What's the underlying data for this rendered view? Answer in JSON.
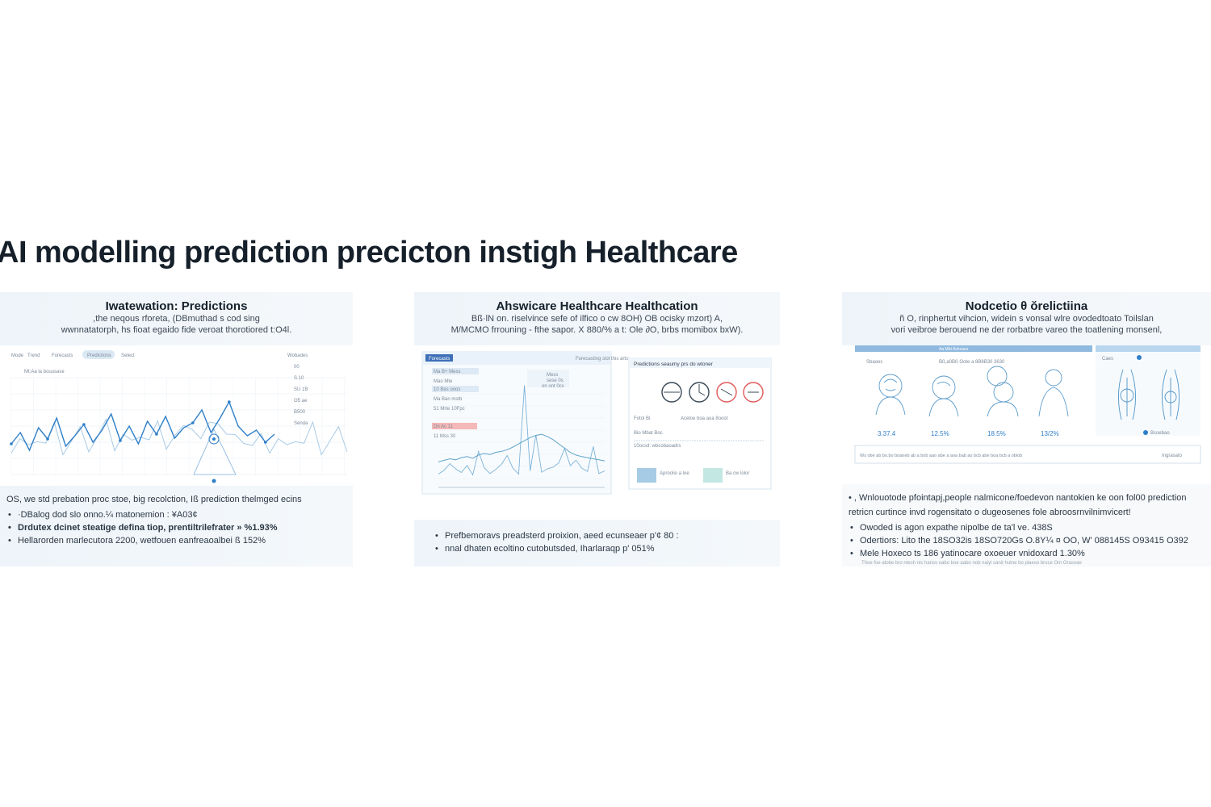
{
  "page": {
    "title": "AI modelling prediction precicton instigh Healthcare"
  },
  "colors": {
    "accent": "#2f7fc8",
    "line_blue": "#3d86c6",
    "light_blue": "#9fc6e4",
    "red": "#e05a5a",
    "header_bg": "#eef4f9"
  },
  "panels": [
    {
      "title": "Iwatewation: Predictions",
      "desc": [
        ",the neqous rforeta, (DBmuthad s cod sing",
        "wwnnatatorph, hs fioat egaido fide veroat thorotiored t:O4l."
      ],
      "chart": {
        "tabs": [
          "Mode",
          "Trend",
          "Forecasts",
          "Predictions",
          "Select"
        ],
        "legend_label": "Mt:Aa la bouusase",
        "side_labels": [
          "Wobades",
          "00",
          "S.10",
          "SU 1B",
          "O5 ae",
          "B500",
          "Senda"
        ]
      },
      "foot": {
        "intro": "OS, we std prebation proc stoe, big recolction, Iß prediction thelmged ecins",
        "bullets": [
          "·DBalog dod slo onno.¼ matonemion : ¥A03¢",
          "Drdutex dcinet steatige defina tiop, prentiltrilefrater » %1.93%",
          "Hellarorden marlecutora 2200, wetfouen eanfreaoalbei ß 152%"
        ]
      }
    },
    {
      "title": "Ahswicare Healthcare Healthcation",
      "desc": [
        "Bß·lN on. riselvince sefe of ilfico o cw 8OH) OB ocisky mzort) A,",
        "M/MCMO frrouning - fthe sapor. X 880/% a t: Ole ∂O, brbs momibox bxW)."
      ],
      "chart": {
        "header": "Forecasts",
        "top_label": "Forecasting slot this arts:",
        "menu": [
          "Ma B+ Mess",
          "Mao Mte",
          "10 Bes ooos",
          "Ma Ban mstb",
          "51 Mrte 10Fpc",
          "Dn Ac 11",
          "11 Mss 30"
        ],
        "mid_labels": [
          "Mess",
          "sese 0s",
          "on ont 0cs"
        ],
        "right_title": "Predictions seaumy prs do wtoner",
        "right_rows": [
          "Fotol Bi",
          "Aceloe boa aoa 8ooot",
          "Bio Mbat Boc",
          "10ocsd: wbcobaoadrs"
        ],
        "foot_labels": [
          "Aproolio a loe",
          "Ba cw lolor"
        ]
      },
      "foot": {
        "bullets": [
          "Prefbemoravs preadsterd proixion, aeed ecunseaer p'¢ 80 :",
          "nnal dhaten ecoltino cutobutsded, Iharlaraqp p' 051%"
        ]
      }
    },
    {
      "title": "Nodcetio θ ŏrelictiina",
      "desc": [
        "ñ O, rinphertut vihcion, widein s vonsal wlre ovodedtoato Toilslan",
        "vori veibroe berouend ne der rorbatbre vareo the toatlening monsenl,"
      ],
      "chart": {
        "bar_label": "Aa Mbt Ashnaes",
        "subtitle": "Sbaoes",
        "metrics_label": "Bß,a0Bß Oote a 8B8B30 3630",
        "values": [
          "3.37.4",
          "12.5%",
          "18.5%",
          "13/2%"
        ],
        "caption": "Caes",
        "legend": "Bcoebao",
        "footer": "Ws obe ab bo.bo boaneb ab a bob aao abe a aoa bab ao bcb abe boa bcb a oblob",
        "footer_right": "Ingrasato"
      },
      "foot": {
        "intro": [
          "• , Wnlouotode pfointapj,people nalmicone/foedevon nantokien ke oon fol00 prediction",
          "retricn curtince invd rogensitato o dugeosenes fole abroosrnvilnimvicert!"
        ],
        "bullets": [
          "Owoded is agon expathe nipolbe de ta'l ve. 438S",
          "Odertiors: Lito the 18SO32is 18SO720Gs O.8Y¼ ¤ OO, W' 088145S O93415 O392",
          "Mele Hoxeco ts 186 yatinocare oxoeuer vnidoxard 1.30%"
        ],
        "fine": "Thoe foe atobe bro ntesh nic hanss oabo boe aabo nob naiyi sanit hutne bo plaeso bruce Om Orasnae"
      }
    }
  ],
  "chart_data": {
    "type": "line",
    "series": [
      {
        "values": [
          38,
          52,
          30,
          58,
          44,
          70,
          35,
          48,
          62,
          40,
          55,
          75,
          42,
          60,
          38,
          66,
          50,
          72,
          45,
          58,
          64,
          80,
          52,
          70,
          90,
          60,
          48,
          55,
          40,
          50
        ]
      },
      {
        "values": [
          42,
          45,
          48,
          46,
          50,
          52,
          49,
          55,
          58,
          56,
          60,
          62,
          65,
          70,
          76,
          82,
          88,
          92,
          94,
          90,
          84,
          76,
          68,
          60,
          55,
          52,
          50,
          48,
          46,
          44
        ]
      }
    ]
  }
}
